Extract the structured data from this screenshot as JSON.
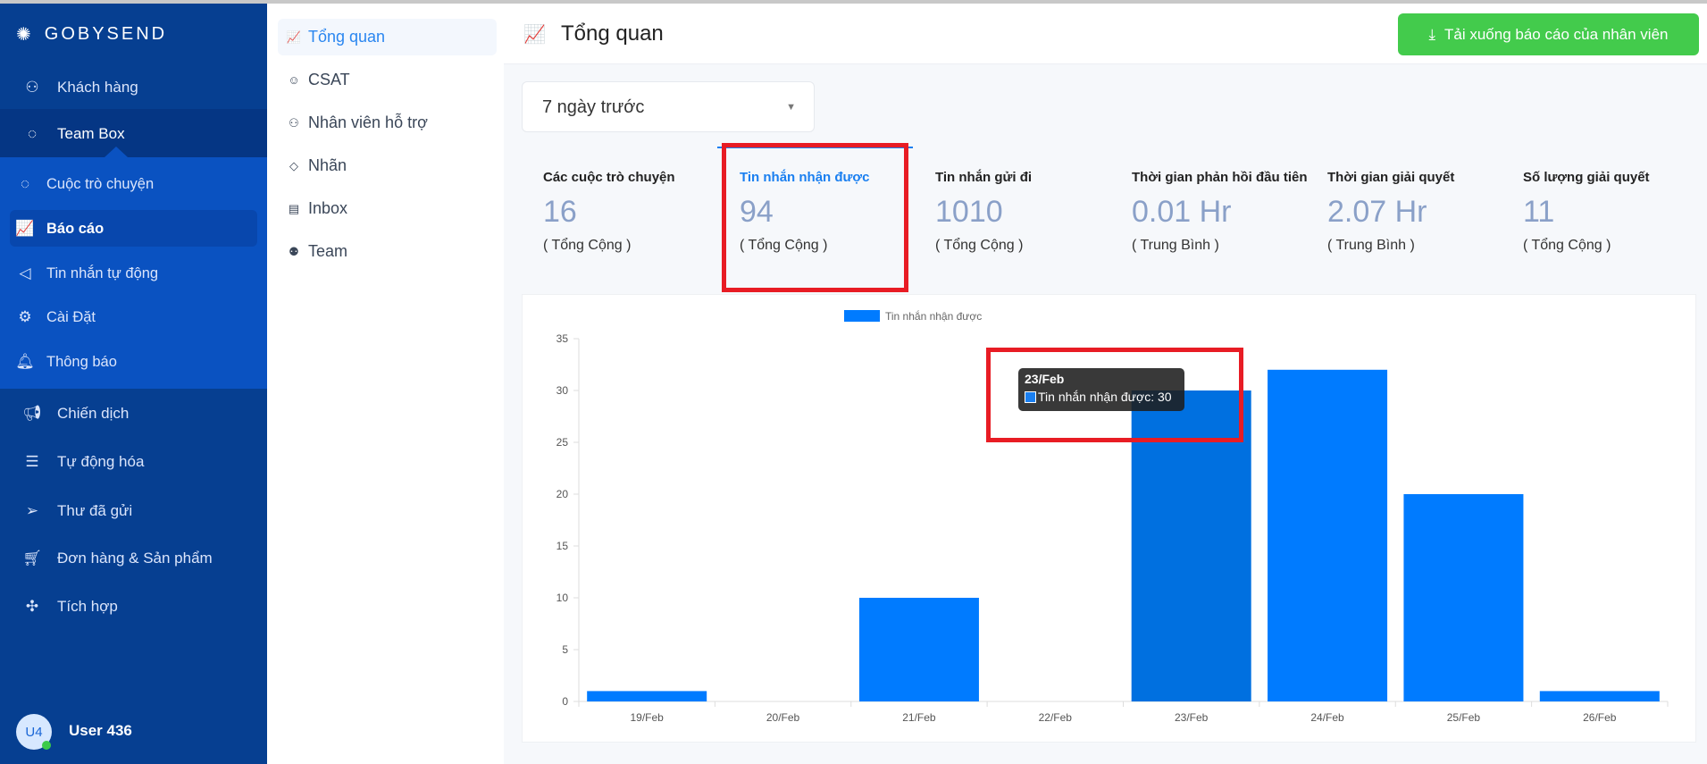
{
  "brand": "GOBYSEND",
  "sidebar": {
    "items": [
      {
        "label": "Khách hàng",
        "icon": "customers-icon"
      },
      {
        "label": "Team Box",
        "icon": "chat-icon"
      },
      {
        "label": "Cuộc trò chuyện",
        "icon": "chat-icon"
      },
      {
        "label": "Báo cáo",
        "icon": "report-chart-icon"
      },
      {
        "label": "Tin nhắn tự động",
        "icon": "megaphone-icon"
      },
      {
        "label": "Cài Đặt",
        "icon": "gear-icon"
      },
      {
        "label": "Thông báo",
        "icon": "bell-icon"
      },
      {
        "label": "Chiến dịch",
        "icon": "campaign-icon"
      },
      {
        "label": "Tự động hóa",
        "icon": "automation-icon"
      },
      {
        "label": "Thư đã gửi",
        "icon": "paper-plane-icon"
      },
      {
        "label": "Đơn hàng & Sản phẩm",
        "icon": "cart-icon"
      },
      {
        "label": "Tích hợp",
        "icon": "puzzle-icon"
      }
    ],
    "user": {
      "initials": "U4",
      "name": "User 436",
      "status_color": "#3ccb4a"
    }
  },
  "subnav": {
    "items": [
      {
        "label": "Tổng quan",
        "icon": "report-chart-icon"
      },
      {
        "label": "CSAT",
        "icon": "smiley-icon"
      },
      {
        "label": "Nhân viên hỗ trợ",
        "icon": "agents-icon"
      },
      {
        "label": "Nhãn",
        "icon": "tag-icon"
      },
      {
        "label": "Inbox",
        "icon": "inbox-icon"
      },
      {
        "label": "Team",
        "icon": "team-icon"
      }
    ]
  },
  "header": {
    "title": "Tổng quan",
    "download_label": "Tải xuống báo cáo của nhân viên"
  },
  "range": {
    "selected": "7 ngày trước"
  },
  "stats": [
    {
      "title": "Các cuộc trò chuyện",
      "value": "16",
      "sub": "( Tổng Cộng )"
    },
    {
      "title": "Tin nhắn nhận được",
      "value": "94",
      "sub": "( Tổng Cộng )"
    },
    {
      "title": "Tin nhắn gửi đi",
      "value": "1010",
      "sub": "( Tổng Cộng )"
    },
    {
      "title": "Thời gian phản hồi đầu tiên",
      "value": "0.01 Hr",
      "sub": "( Trung Bình )"
    },
    {
      "title": "Thời gian giải quyết",
      "value": "2.07 Hr",
      "sub": "( Trung Bình )"
    },
    {
      "title": "Số lượng giải quyết",
      "value": "11",
      "sub": "( Tổng Cộng )"
    }
  ],
  "colors": {
    "sidebar": "#063f91",
    "accent": "#1a7ff0",
    "download": "#43cb4c",
    "highlight": "#e81c24"
  },
  "chart_data": {
    "type": "bar",
    "categories": [
      "19/Feb",
      "20/Feb",
      "21/Feb",
      "22/Feb",
      "23/Feb",
      "24/Feb",
      "25/Feb",
      "26/Feb"
    ],
    "series": [
      {
        "name": "Tin nhắn nhận được",
        "values": [
          1,
          0,
          10,
          0,
          30,
          32,
          20,
          1
        ],
        "color": "#007bff"
      }
    ],
    "ylim": [
      0,
      35
    ],
    "yticks": [
      0,
      5,
      10,
      15,
      20,
      25,
      30,
      35
    ],
    "legend": "top",
    "tooltip": {
      "title": "23/Feb",
      "label": "Tin nhắn nhận được: 30"
    }
  }
}
